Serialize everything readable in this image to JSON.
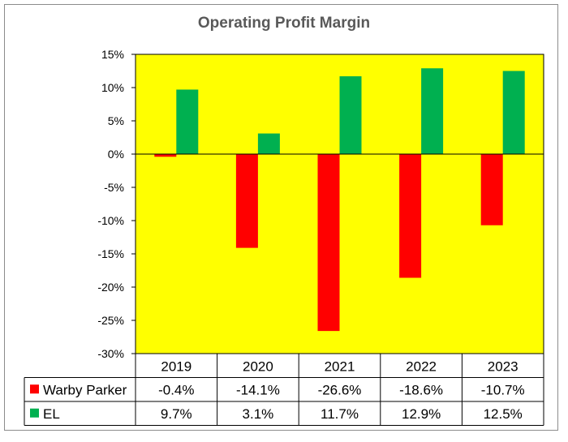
{
  "chart_data": {
    "type": "bar",
    "title": "Operating Profit Margin",
    "categories": [
      "2019",
      "2020",
      "2021",
      "2022",
      "2023"
    ],
    "series": [
      {
        "name": "Warby Parker",
        "color": "#ff0000",
        "values": [
          -0.4,
          -14.1,
          -26.6,
          -18.6,
          -10.7
        ],
        "labels": [
          "-0.4%",
          "-14.1%",
          "-26.6%",
          "-18.6%",
          "-10.7%"
        ]
      },
      {
        "name": "EL",
        "color": "#00b050",
        "values": [
          9.7,
          3.1,
          11.7,
          12.9,
          12.5
        ],
        "labels": [
          "9.7%",
          "3.1%",
          "11.7%",
          "12.9%",
          "12.5%"
        ]
      }
    ],
    "ylim": [
      -30,
      15
    ],
    "yticks": [
      15,
      10,
      5,
      0,
      -5,
      -10,
      -15,
      -20,
      -25,
      -30
    ],
    "ytick_labels": [
      "15%",
      "10%",
      "5%",
      "0%",
      "-5%",
      "-10%",
      "-15%",
      "-20%",
      "-25%",
      "-30%"
    ],
    "plot_background": "#ffff00",
    "grid": false,
    "legend": "data-table"
  }
}
